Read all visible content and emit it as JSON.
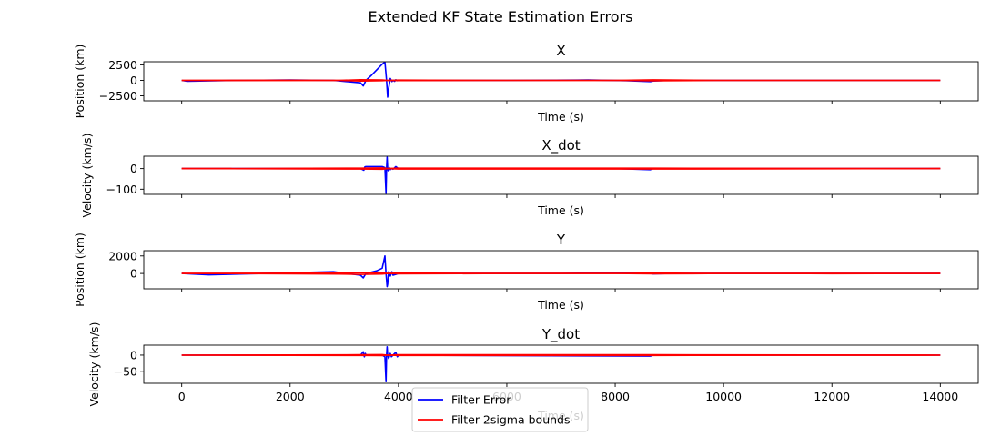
{
  "figure": {
    "suptitle": "Extended KF State Estimation Errors"
  },
  "legend": {
    "placement": "bottom-center",
    "entries": [
      {
        "label": "Filter Error",
        "color": "#0000ff"
      },
      {
        "label": "Filter 2sigma bounds",
        "color": "#ff0000"
      }
    ]
  },
  "chart_data": [
    {
      "type": "line",
      "title": "X",
      "xlabel": "Time (s)",
      "ylabel": "Position (km)",
      "xlim": [
        -700,
        14700
      ],
      "ylim": [
        -3300,
        3000
      ],
      "yticks": [
        -2500,
        0,
        2500
      ],
      "ytick_labels": [
        "−2500",
        "0",
        "2500"
      ],
      "xtick_labels_visible": false,
      "grid": false,
      "series": [
        {
          "name": "Filter Error",
          "color": "#0000ff",
          "x": [
            0,
            100,
            1000,
            2000,
            2800,
            3300,
            3350,
            3400,
            3500,
            3600,
            3700,
            3750,
            3780,
            3800,
            3820,
            3850,
            3880,
            3900,
            3930,
            3950,
            3980,
            4000,
            4500,
            6000,
            7500,
            8200,
            8650,
            8700,
            9000,
            10000,
            12000,
            14000
          ],
          "y": [
            0,
            -150,
            0,
            50,
            0,
            -400,
            -900,
            0,
            800,
            1700,
            2600,
            2950,
            0,
            -2700,
            -1300,
            300,
            -200,
            0,
            -150,
            100,
            -50,
            0,
            0,
            0,
            50,
            -50,
            -200,
            -100,
            0,
            0,
            0,
            0
          ]
        },
        {
          "name": "Filter 2sigma bounds",
          "color": "#ff0000",
          "x": [
            0,
            2000,
            2900,
            3300,
            3700,
            3800,
            4000,
            6000,
            8000,
            8700,
            10000,
            12000,
            14000
          ],
          "y": [
            0,
            20,
            0,
            -100,
            -50,
            0,
            -40,
            0,
            0,
            -80,
            0,
            0,
            0
          ]
        },
        {
          "name": "Filter 2sigma bounds",
          "color": "#ff0000",
          "x": [
            0,
            2000,
            2900,
            3300,
            3700,
            3800,
            4000,
            6000,
            8000,
            8700,
            10000,
            12000,
            14000
          ],
          "y": [
            0,
            -20,
            0,
            100,
            50,
            0,
            40,
            0,
            0,
            80,
            0,
            0,
            0
          ]
        }
      ]
    },
    {
      "type": "line",
      "title": "X_dot",
      "xlabel": "Time (s)",
      "ylabel": "Velocity (km/s)",
      "xlim": [
        -700,
        14700
      ],
      "ylim": [
        -125,
        60
      ],
      "yticks": [
        -100,
        0
      ],
      "ytick_labels": [
        "−100",
        "0"
      ],
      "xtick_labels_visible": false,
      "grid": false,
      "series": [
        {
          "name": "Filter Error",
          "color": "#0000ff",
          "x": [
            0,
            1000,
            2800,
            3300,
            3360,
            3380,
            3400,
            3700,
            3750,
            3770,
            3780,
            3790,
            3800,
            3810,
            3830,
            3850,
            3870,
            3900,
            3950,
            4000,
            5000,
            8000,
            8650,
            8700,
            10000,
            14000
          ],
          "y": [
            0,
            0,
            0,
            0,
            -8,
            8,
            10,
            10,
            5,
            -120,
            0,
            55,
            0,
            -10,
            5,
            -5,
            0,
            -3,
            10,
            0,
            0,
            0,
            -5,
            0,
            0,
            0
          ]
        },
        {
          "name": "Filter 2sigma bounds",
          "color": "#ff0000",
          "x": [
            0,
            3300,
            3700,
            3800,
            4000,
            8700,
            14000
          ],
          "y": [
            0,
            -2,
            -3,
            0,
            -2,
            -2,
            0
          ]
        },
        {
          "name": "Filter 2sigma bounds",
          "color": "#ff0000",
          "x": [
            0,
            3300,
            3700,
            3800,
            4000,
            8700,
            14000
          ],
          "y": [
            0,
            2,
            3,
            0,
            2,
            2,
            0
          ]
        }
      ]
    },
    {
      "type": "line",
      "title": "Y",
      "xlabel": "Time (s)",
      "ylabel": "Position (km)",
      "xlim": [
        -700,
        14700
      ],
      "ylim": [
        -1750,
        2600
      ],
      "yticks": [
        0,
        2000
      ],
      "ytick_labels": [
        "0",
        "2000"
      ],
      "xtick_labels_visible": false,
      "grid": false,
      "series": [
        {
          "name": "Filter Error",
          "color": "#0000ff",
          "x": [
            0,
            500,
            1500,
            2800,
            3300,
            3350,
            3400,
            3600,
            3700,
            3750,
            3770,
            3790,
            3800,
            3820,
            3850,
            3880,
            3900,
            3950,
            4000,
            5000,
            7000,
            8200,
            8650,
            8700,
            9000,
            12000,
            14000
          ],
          "y": [
            0,
            -150,
            0,
            200,
            -200,
            -500,
            0,
            300,
            600,
            2000,
            0,
            -1500,
            -1200,
            200,
            -300,
            200,
            -200,
            -100,
            0,
            0,
            0,
            100,
            0,
            -50,
            0,
            0,
            0
          ]
        },
        {
          "name": "Filter 2sigma bounds",
          "color": "#ff0000",
          "x": [
            0,
            2000,
            2900,
            3300,
            3700,
            3800,
            4000,
            6000,
            8000,
            8700,
            10000,
            12000,
            14000
          ],
          "y": [
            0,
            -30,
            -60,
            -100,
            -60,
            0,
            -40,
            0,
            0,
            -40,
            0,
            -20,
            0
          ]
        },
        {
          "name": "Filter 2sigma bounds",
          "color": "#ff0000",
          "x": [
            0,
            2000,
            2900,
            3300,
            3700,
            3800,
            4000,
            6000,
            8000,
            8700,
            10000,
            12000,
            14000
          ],
          "y": [
            0,
            30,
            60,
            100,
            60,
            0,
            40,
            0,
            0,
            40,
            0,
            20,
            0
          ]
        }
      ]
    },
    {
      "type": "line",
      "title": "Y_dot",
      "xlabel": "Time (s)",
      "ylabel": "Velocity (km/s)",
      "xlim": [
        -700,
        14700
      ],
      "ylim": [
        -85,
        30
      ],
      "yticks": [
        -50,
        0
      ],
      "ytick_labels": [
        "−50",
        "0"
      ],
      "xticks": [
        0,
        2000,
        4000,
        6000,
        8000,
        10000,
        12000,
        14000
      ],
      "xtick_labels": [
        "0",
        "2000",
        "4000",
        "6000",
        "8000",
        "10000",
        "12000",
        "14000"
      ],
      "xtick_labels_visible": true,
      "grid": false,
      "series": [
        {
          "name": "Filter Error",
          "color": "#0000ff",
          "x": [
            0,
            1000,
            3300,
            3350,
            3370,
            3390,
            3400,
            3700,
            3750,
            3770,
            3780,
            3790,
            3800,
            3820,
            3850,
            3870,
            3900,
            3950,
            3980,
            4000,
            8650,
            8700,
            14000
          ],
          "y": [
            0,
            0,
            0,
            10,
            -5,
            5,
            0,
            0,
            -5,
            -80,
            0,
            25,
            0,
            -10,
            5,
            -5,
            0,
            8,
            -5,
            0,
            -3,
            0,
            0
          ]
        },
        {
          "name": "Filter 2sigma bounds",
          "color": "#ff0000",
          "x": [
            0,
            3300,
            3700,
            3800,
            4000,
            8700,
            14000
          ],
          "y": [
            0,
            -1,
            -1.5,
            0,
            -1,
            -1,
            0
          ]
        },
        {
          "name": "Filter 2sigma bounds",
          "color": "#ff0000",
          "x": [
            0,
            3300,
            3700,
            3800,
            4000,
            8700,
            14000
          ],
          "y": [
            0,
            1,
            1.5,
            0,
            1,
            1,
            0
          ]
        }
      ]
    }
  ]
}
